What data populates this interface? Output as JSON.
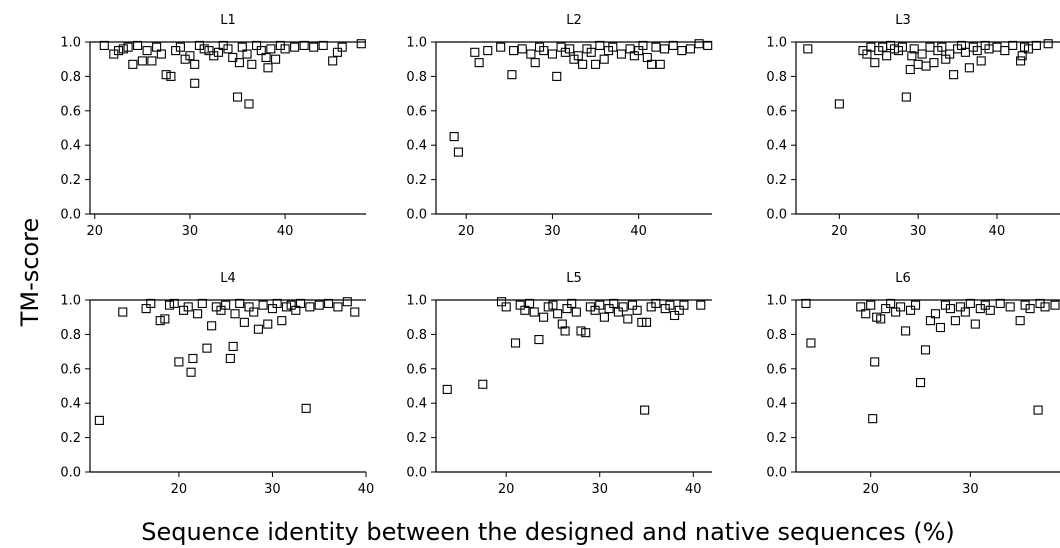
{
  "figure": {
    "ylabel": "TM-score",
    "xlabel": "Sequence identity between the designed and native sequences (%)"
  },
  "chart_data": [
    {
      "type": "scatter",
      "title": "L1",
      "xlim": [
        19.5,
        48.5
      ],
      "ylim": [
        0,
        1.0
      ],
      "xticks": [
        20,
        30,
        40
      ],
      "yticks": [
        0.0,
        0.2,
        0.4,
        0.6,
        0.8,
        1.0
      ],
      "points": [
        [
          21,
          0.98
        ],
        [
          22,
          0.93
        ],
        [
          22.5,
          0.95
        ],
        [
          23,
          0.96
        ],
        [
          23.5,
          0.97
        ],
        [
          24,
          0.87
        ],
        [
          24.5,
          0.98
        ],
        [
          25,
          0.89
        ],
        [
          25.5,
          0.95
        ],
        [
          26,
          0.89
        ],
        [
          26.5,
          0.97
        ],
        [
          27,
          0.93
        ],
        [
          27.5,
          0.81
        ],
        [
          28,
          0.8
        ],
        [
          28.5,
          0.95
        ],
        [
          29,
          0.97
        ],
        [
          29.5,
          0.9
        ],
        [
          30,
          0.92
        ],
        [
          30.5,
          0.76
        ],
        [
          30.5,
          0.87
        ],
        [
          31,
          0.98
        ],
        [
          31.5,
          0.96
        ],
        [
          32,
          0.95
        ],
        [
          32.5,
          0.92
        ],
        [
          33,
          0.94
        ],
        [
          33.5,
          0.98
        ],
        [
          34,
          0.96
        ],
        [
          34.5,
          0.91
        ],
        [
          35,
          0.68
        ],
        [
          35.2,
          0.88
        ],
        [
          35.5,
          0.97
        ],
        [
          36,
          0.93
        ],
        [
          36.2,
          0.64
        ],
        [
          36.5,
          0.87
        ],
        [
          37,
          0.98
        ],
        [
          37.5,
          0.95
        ],
        [
          38,
          0.91
        ],
        [
          38.2,
          0.85
        ],
        [
          38.5,
          0.96
        ],
        [
          39,
          0.9
        ],
        [
          39.5,
          0.98
        ],
        [
          40,
          0.96
        ],
        [
          41,
          0.97
        ],
        [
          42,
          0.98
        ],
        [
          43,
          0.97
        ],
        [
          44,
          0.98
        ],
        [
          45,
          0.89
        ],
        [
          45.5,
          0.94
        ],
        [
          46,
          0.97
        ],
        [
          48,
          0.99
        ]
      ]
    },
    {
      "type": "scatter",
      "title": "L2",
      "xlim": [
        16.5,
        48.5
      ],
      "ylim": [
        0,
        1.0
      ],
      "xticks": [
        20,
        30,
        40
      ],
      "yticks": [
        0.0,
        0.2,
        0.4,
        0.6,
        0.8,
        1.0
      ],
      "points": [
        [
          18.6,
          0.45
        ],
        [
          19.1,
          0.36
        ],
        [
          21,
          0.94
        ],
        [
          21.5,
          0.88
        ],
        [
          22.5,
          0.95
        ],
        [
          24,
          0.97
        ],
        [
          25.3,
          0.81
        ],
        [
          25.5,
          0.95
        ],
        [
          26.5,
          0.96
        ],
        [
          27.5,
          0.93
        ],
        [
          28,
          0.88
        ],
        [
          28.5,
          0.97
        ],
        [
          29,
          0.95
        ],
        [
          30,
          0.93
        ],
        [
          30.5,
          0.8
        ],
        [
          31,
          0.97
        ],
        [
          31.5,
          0.94
        ],
        [
          32,
          0.96
        ],
        [
          32.5,
          0.9
        ],
        [
          33,
          0.92
        ],
        [
          33.5,
          0.87
        ],
        [
          34,
          0.96
        ],
        [
          34.5,
          0.94
        ],
        [
          35,
          0.87
        ],
        [
          35.5,
          0.98
        ],
        [
          36,
          0.9
        ],
        [
          36.5,
          0.95
        ],
        [
          37,
          0.97
        ],
        [
          38,
          0.93
        ],
        [
          39,
          0.96
        ],
        [
          39.5,
          0.92
        ],
        [
          40,
          0.95
        ],
        [
          40.5,
          0.98
        ],
        [
          41,
          0.91
        ],
        [
          41.5,
          0.87
        ],
        [
          42,
          0.97
        ],
        [
          42.5,
          0.87
        ],
        [
          43,
          0.96
        ],
        [
          44,
          0.98
        ],
        [
          45,
          0.95
        ],
        [
          46,
          0.96
        ],
        [
          47,
          0.99
        ],
        [
          48,
          0.98
        ]
      ]
    },
    {
      "type": "scatter",
      "title": "L3",
      "xlim": [
        14.5,
        48
      ],
      "ylim": [
        0,
        1.0
      ],
      "xticks": [
        20,
        30,
        40
      ],
      "yticks": [
        0.0,
        0.2,
        0.4,
        0.6,
        0.8,
        1.0
      ],
      "points": [
        [
          16,
          0.96
        ],
        [
          20,
          0.64
        ],
        [
          23,
          0.95
        ],
        [
          23.5,
          0.93
        ],
        [
          24,
          0.97
        ],
        [
          24.5,
          0.88
        ],
        [
          25,
          0.95
        ],
        [
          25.5,
          0.97
        ],
        [
          26,
          0.92
        ],
        [
          26.5,
          0.98
        ],
        [
          27,
          0.96
        ],
        [
          27.5,
          0.95
        ],
        [
          28,
          0.97
        ],
        [
          28.5,
          0.68
        ],
        [
          29,
          0.84
        ],
        [
          29.2,
          0.92
        ],
        [
          29.5,
          0.96
        ],
        [
          30,
          0.87
        ],
        [
          30.5,
          0.93
        ],
        [
          31,
          0.86
        ],
        [
          31.5,
          0.97
        ],
        [
          32,
          0.88
        ],
        [
          32.5,
          0.95
        ],
        [
          33,
          0.97
        ],
        [
          33.5,
          0.9
        ],
        [
          34,
          0.93
        ],
        [
          34.5,
          0.81
        ],
        [
          35,
          0.96
        ],
        [
          35.5,
          0.98
        ],
        [
          36,
          0.94
        ],
        [
          36.5,
          0.85
        ],
        [
          37,
          0.97
        ],
        [
          37.5,
          0.95
        ],
        [
          38,
          0.89
        ],
        [
          38.5,
          0.98
        ],
        [
          39,
          0.96
        ],
        [
          40,
          0.97
        ],
        [
          41,
          0.95
        ],
        [
          42,
          0.98
        ],
        [
          43,
          0.89
        ],
        [
          43.2,
          0.92
        ],
        [
          43.5,
          0.97
        ],
        [
          44,
          0.96
        ],
        [
          45,
          0.98
        ],
        [
          46.5,
          0.99
        ],
        [
          47.5,
          0.97
        ]
      ]
    },
    {
      "type": "scatter",
      "title": "L4",
      "xlim": [
        10.5,
        40
      ],
      "ylim": [
        0,
        1.0
      ],
      "xticks": [
        20,
        30,
        40
      ],
      "yticks": [
        0.0,
        0.2,
        0.4,
        0.6,
        0.8,
        1.0
      ],
      "points": [
        [
          11.5,
          0.3
        ],
        [
          14,
          0.93
        ],
        [
          16.5,
          0.95
        ],
        [
          17,
          0.98
        ],
        [
          18,
          0.88
        ],
        [
          18.5,
          0.89
        ],
        [
          19,
          0.97
        ],
        [
          19.5,
          0.98
        ],
        [
          20,
          0.64
        ],
        [
          20.5,
          0.94
        ],
        [
          21,
          0.96
        ],
        [
          21.3,
          0.58
        ],
        [
          21.5,
          0.66
        ],
        [
          22,
          0.92
        ],
        [
          22.5,
          0.98
        ],
        [
          23,
          0.72
        ],
        [
          23.5,
          0.85
        ],
        [
          24,
          0.96
        ],
        [
          24.5,
          0.94
        ],
        [
          25,
          0.97
        ],
        [
          25.5,
          0.66
        ],
        [
          25.8,
          0.73
        ],
        [
          26,
          0.92
        ],
        [
          26.5,
          0.98
        ],
        [
          27,
          0.87
        ],
        [
          27.5,
          0.96
        ],
        [
          28,
          0.93
        ],
        [
          28.5,
          0.83
        ],
        [
          29,
          0.97
        ],
        [
          29.5,
          0.86
        ],
        [
          30,
          0.95
        ],
        [
          30.5,
          0.98
        ],
        [
          31,
          0.88
        ],
        [
          31.5,
          0.96
        ],
        [
          32,
          0.97
        ],
        [
          32.5,
          0.94
        ],
        [
          33,
          0.98
        ],
        [
          33.6,
          0.37
        ],
        [
          34,
          0.96
        ],
        [
          35,
          0.97
        ],
        [
          36,
          0.98
        ],
        [
          37,
          0.96
        ],
        [
          38,
          0.99
        ],
        [
          38.8,
          0.93
        ]
      ]
    },
    {
      "type": "scatter",
      "title": "L5",
      "xlim": [
        12.5,
        42
      ],
      "ylim": [
        0,
        1.0
      ],
      "xticks": [
        20,
        30,
        40
      ],
      "yticks": [
        0.0,
        0.2,
        0.4,
        0.6,
        0.8,
        1.0
      ],
      "points": [
        [
          13.7,
          0.48
        ],
        [
          17.5,
          0.51
        ],
        [
          19.5,
          0.99
        ],
        [
          20,
          0.96
        ],
        [
          21,
          0.75
        ],
        [
          21.5,
          0.97
        ],
        [
          22,
          0.94
        ],
        [
          22.5,
          0.98
        ],
        [
          23,
          0.93
        ],
        [
          23.5,
          0.77
        ],
        [
          24,
          0.9
        ],
        [
          24.5,
          0.96
        ],
        [
          25,
          0.97
        ],
        [
          25.5,
          0.92
        ],
        [
          26,
          0.86
        ],
        [
          26.3,
          0.82
        ],
        [
          26.5,
          0.95
        ],
        [
          27,
          0.98
        ],
        [
          27.5,
          0.93
        ],
        [
          28,
          0.82
        ],
        [
          28.5,
          0.81
        ],
        [
          29,
          0.96
        ],
        [
          29.5,
          0.94
        ],
        [
          30,
          0.97
        ],
        [
          30.5,
          0.9
        ],
        [
          31,
          0.95
        ],
        [
          31.5,
          0.98
        ],
        [
          32,
          0.93
        ],
        [
          32.5,
          0.96
        ],
        [
          33,
          0.89
        ],
        [
          33.5,
          0.97
        ],
        [
          34,
          0.94
        ],
        [
          34.5,
          0.87
        ],
        [
          34.8,
          0.36
        ],
        [
          35,
          0.87
        ],
        [
          35.5,
          0.96
        ],
        [
          36,
          0.98
        ],
        [
          37,
          0.95
        ],
        [
          37.5,
          0.97
        ],
        [
          38,
          0.91
        ],
        [
          38.5,
          0.94
        ],
        [
          39,
          0.97
        ],
        [
          40.8,
          0.97
        ]
      ]
    },
    {
      "type": "scatter",
      "title": "L6",
      "xlim": [
        12.5,
        39
      ],
      "ylim": [
        0,
        1.0
      ],
      "xticks": [
        20,
        30
      ],
      "yticks": [
        0.0,
        0.2,
        0.4,
        0.6,
        0.8,
        1.0
      ],
      "points": [
        [
          13.5,
          0.98
        ],
        [
          14,
          0.75
        ],
        [
          19,
          0.96
        ],
        [
          19.5,
          0.92
        ],
        [
          20,
          0.97
        ],
        [
          20.2,
          0.31
        ],
        [
          20.4,
          0.64
        ],
        [
          20.6,
          0.9
        ],
        [
          21,
          0.89
        ],
        [
          21.5,
          0.95
        ],
        [
          22,
          0.98
        ],
        [
          22.5,
          0.93
        ],
        [
          23,
          0.96
        ],
        [
          23.5,
          0.82
        ],
        [
          24,
          0.94
        ],
        [
          24.5,
          0.97
        ],
        [
          25,
          0.52
        ],
        [
          25.5,
          0.71
        ],
        [
          26,
          0.88
        ],
        [
          26.5,
          0.92
        ],
        [
          27,
          0.84
        ],
        [
          27.5,
          0.97
        ],
        [
          28,
          0.95
        ],
        [
          28.5,
          0.88
        ],
        [
          29,
          0.96
        ],
        [
          29.5,
          0.93
        ],
        [
          30,
          0.98
        ],
        [
          30.5,
          0.86
        ],
        [
          31,
          0.95
        ],
        [
          31.5,
          0.97
        ],
        [
          32,
          0.94
        ],
        [
          33,
          0.98
        ],
        [
          34,
          0.96
        ],
        [
          35,
          0.88
        ],
        [
          35.5,
          0.97
        ],
        [
          36,
          0.95
        ],
        [
          36.8,
          0.36
        ],
        [
          37,
          0.98
        ],
        [
          37.5,
          0.96
        ],
        [
          38.5,
          0.97
        ]
      ]
    }
  ]
}
